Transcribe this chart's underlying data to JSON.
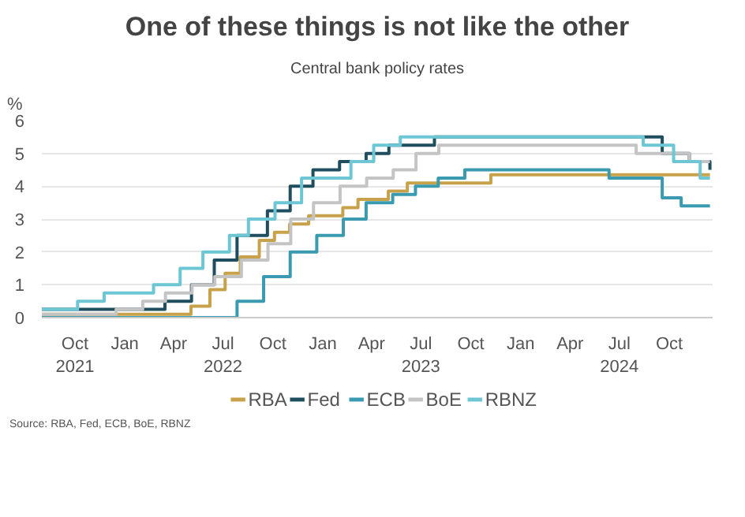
{
  "chart_data": {
    "type": "step",
    "title": "One of these things is not like the other",
    "subtitle": "Central bank policy rates",
    "ylabel": "%",
    "annotations": [
      "Source: RBA, Fed, ECB, BoE, RBNZ"
    ],
    "xlim": [
      "2021-08-01",
      "2024-12-20"
    ],
    "xticks": [
      {
        "value": "2021-10-01",
        "label": "Oct\n2021"
      },
      {
        "value": "2022-01-01",
        "label": "Jan"
      },
      {
        "value": "2022-04-01",
        "label": "Apr"
      },
      {
        "value": "2022-07-01",
        "label": "Jul\n2022"
      },
      {
        "value": "2022-10-01",
        "label": "Oct"
      },
      {
        "value": "2023-01-01",
        "label": "Jan"
      },
      {
        "value": "2023-04-01",
        "label": "Apr"
      },
      {
        "value": "2023-07-01",
        "label": "Jul\n2023"
      },
      {
        "value": "2023-10-01",
        "label": "Oct"
      },
      {
        "value": "2024-01-01",
        "label": "Jan"
      },
      {
        "value": "2024-04-01",
        "label": "Apr"
      },
      {
        "value": "2024-07-01",
        "label": "Jul\n2024"
      },
      {
        "value": "2024-10-01",
        "label": "Oct"
      }
    ],
    "ylim": [
      0,
      6
    ],
    "yticks": [
      0,
      1,
      2,
      3,
      4,
      5,
      6
    ],
    "grid": "y",
    "legend": "bottom",
    "line_style": "solid",
    "marker": "none",
    "series": [
      {
        "name": "RBA",
        "color": "#c8a24a",
        "x": [
          "2021-08-01",
          "2022-05-03",
          "2022-06-07",
          "2022-07-05",
          "2022-08-02",
          "2022-09-06",
          "2022-10-04",
          "2022-11-01",
          "2022-12-06",
          "2023-02-07",
          "2023-03-07",
          "2023-05-02",
          "2023-06-06",
          "2023-11-07",
          "2024-12-15"
        ],
        "values": [
          0.1,
          0.35,
          0.85,
          1.35,
          1.85,
          2.35,
          2.6,
          2.85,
          3.1,
          3.35,
          3.6,
          3.85,
          4.1,
          4.35,
          4.35
        ]
      },
      {
        "name": "Fed",
        "color": "#1f4e5f",
        "x": [
          "2021-08-01",
          "2022-03-16",
          "2022-05-04",
          "2022-06-15",
          "2022-07-27",
          "2022-09-21",
          "2022-11-02",
          "2022-12-14",
          "2023-02-01",
          "2023-03-22",
          "2023-05-03",
          "2023-07-26",
          "2024-09-18",
          "2024-11-07",
          "2024-12-15"
        ],
        "values": [
          0.25,
          0.5,
          1.0,
          1.75,
          2.5,
          3.25,
          4.0,
          4.5,
          4.75,
          5.0,
          5.25,
          5.5,
          5.0,
          4.75,
          4.5
        ]
      },
      {
        "name": "ECB",
        "color": "#3a9ab0",
        "x": [
          "2021-08-01",
          "2022-07-27",
          "2022-09-14",
          "2022-11-02",
          "2022-12-21",
          "2023-02-08",
          "2023-03-22",
          "2023-05-10",
          "2023-06-21",
          "2023-08-02",
          "2023-09-20",
          "2024-06-12",
          "2024-09-18",
          "2024-10-23",
          "2024-12-15"
        ],
        "values": [
          0.0,
          0.5,
          1.25,
          2.0,
          2.5,
          3.0,
          3.5,
          3.75,
          4.0,
          4.25,
          4.5,
          4.25,
          3.65,
          3.4,
          3.4
        ]
      },
      {
        "name": "BoE",
        "color": "#c4c4c4",
        "x": [
          "2021-08-01",
          "2021-12-16",
          "2022-02-03",
          "2022-03-17",
          "2022-05-05",
          "2022-06-16",
          "2022-08-04",
          "2022-09-22",
          "2022-11-03",
          "2022-12-15",
          "2023-02-02",
          "2023-03-23",
          "2023-05-11",
          "2023-06-22",
          "2023-08-03",
          "2024-08-01",
          "2024-11-07",
          "2024-12-15"
        ],
        "values": [
          0.1,
          0.25,
          0.5,
          0.75,
          1.0,
          1.25,
          1.75,
          2.25,
          3.0,
          3.5,
          4.0,
          4.25,
          4.5,
          5.0,
          5.25,
          5.0,
          4.75,
          4.75
        ]
      },
      {
        "name": "RBNZ",
        "color": "#6cc6d4",
        "x": [
          "2021-08-01",
          "2021-10-06",
          "2021-11-24",
          "2022-02-23",
          "2022-04-13",
          "2022-05-25",
          "2022-07-13",
          "2022-08-17",
          "2022-10-05",
          "2022-11-23",
          "2023-02-22",
          "2023-04-05",
          "2023-05-24",
          "2024-08-14",
          "2024-10-09",
          "2024-11-27",
          "2024-12-15"
        ],
        "values": [
          0.25,
          0.5,
          0.75,
          1.0,
          1.5,
          2.0,
          2.5,
          3.0,
          3.5,
          4.25,
          4.75,
          5.25,
          5.5,
          5.25,
          4.75,
          4.25,
          4.25
        ]
      }
    ]
  }
}
